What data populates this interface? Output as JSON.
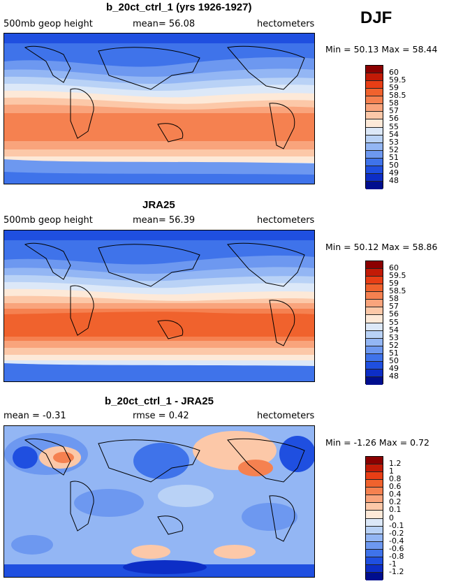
{
  "season": "DJF",
  "chart_data": [
    {
      "type": "heatmap",
      "title": "b_20ct_ctrl_1 (yrs 1926-1927)",
      "left_label": "500mb geop height",
      "center_label": "mean=  56.08",
      "units": "hectometers",
      "min_max": "Min =  50.13 Max =  58.44",
      "colorbar_labels": [
        "60",
        "59.5",
        "59",
        "58.5",
        "58",
        "57",
        "56",
        "55",
        "54",
        "53",
        "52",
        "51",
        "50",
        "49",
        "48"
      ],
      "colors": [
        "#8b0000",
        "#c21a06",
        "#e83e15",
        "#f0622d",
        "#f58150",
        "#f9a47c",
        "#fcc8a8",
        "#fde9d8",
        "#dce8f8",
        "#b9d2f6",
        "#93b6f4",
        "#6d98f0",
        "#3f73ea",
        "#1f4fe0",
        "#0d2ec6",
        "#000e8e"
      ]
    },
    {
      "type": "heatmap",
      "title": "JRA25",
      "left_label": "500mb geop height",
      "center_label": "mean=  56.39",
      "units": "hectometers",
      "min_max": "Min =  50.12 Max =  58.86",
      "colorbar_labels": [
        "60",
        "59.5",
        "59",
        "58.5",
        "58",
        "57",
        "56",
        "55",
        "54",
        "53",
        "52",
        "51",
        "50",
        "49",
        "48"
      ],
      "colors": [
        "#8b0000",
        "#c21a06",
        "#e83e15",
        "#f0622d",
        "#f58150",
        "#f9a47c",
        "#fcc8a8",
        "#fde9d8",
        "#dce8f8",
        "#b9d2f6",
        "#93b6f4",
        "#6d98f0",
        "#3f73ea",
        "#1f4fe0",
        "#0d2ec6",
        "#000e8e"
      ]
    },
    {
      "type": "heatmap",
      "title": "b_20ct_ctrl_1 - JRA25",
      "left_label": "mean =  -0.31",
      "center_label": "rmse =   0.42",
      "units": "hectometers",
      "min_max": "Min =  -1.26 Max =   0.72",
      "colorbar_labels": [
        "1.2",
        "1",
        "0.8",
        "0.6",
        "0.4",
        "0.2",
        "0.1",
        "0",
        "-0.1",
        "-0.2",
        "-0.4",
        "-0.6",
        "-0.8",
        "-1",
        "-1.2"
      ],
      "colors": [
        "#8b0000",
        "#c21a06",
        "#e83e15",
        "#f0622d",
        "#f58150",
        "#f9a47c",
        "#fcc8a8",
        "#fde9d8",
        "#dce8f8",
        "#b9d2f6",
        "#93b6f4",
        "#6d98f0",
        "#3f73ea",
        "#1f4fe0",
        "#0d2ec6",
        "#000e8e"
      ]
    }
  ]
}
